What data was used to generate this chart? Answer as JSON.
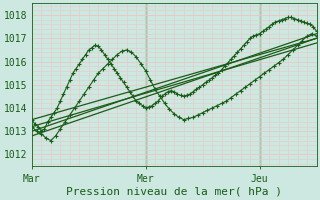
{
  "xlabel": "Pression niveau de la mer( hPa )",
  "bg_color": "#cce8e0",
  "plot_bg_color": "#cce8e0",
  "grid_major_color": "#e8c8c8",
  "grid_minor_color": "#e8c8c8",
  "line_color": "#1a5c1a",
  "vline_color": "#2d6e2d",
  "ylim": [
    1011.5,
    1018.5
  ],
  "yticks": [
    1012,
    1013,
    1014,
    1015,
    1016,
    1017,
    1018
  ],
  "xlabel_fontsize": 8,
  "tick_fontsize": 7,
  "series": [
    {
      "x": [
        0.0,
        1.0,
        2.0,
        3.0,
        4.0,
        5.0,
        6.0,
        7.0,
        8.0,
        9.0,
        10.0,
        11.0,
        12.0,
        13.0,
        14.0,
        15.0,
        16.0,
        17.0,
        18.0,
        19.0,
        20.0,
        21.0,
        22.0,
        23.0,
        24.0,
        25.0,
        26.0,
        27.0,
        28.0,
        29.0,
        30.0,
        31.0,
        32.0,
        33.0,
        34.0,
        35.0,
        36.0,
        37.0,
        38.0,
        39.0,
        40.0,
        41.0,
        42.0,
        43.0,
        44.0,
        45.0,
        46.0,
        47.0,
        48.0,
        49.0,
        50.0,
        51.0,
        52.0,
        53.0,
        54.0,
        55.0,
        56.0,
        57.0,
        58.0,
        59.0,
        60.0,
        61.0,
        62.0,
        63.0,
        64.0,
        65.0,
        66.0,
        67.0,
        68.0,
        69.0,
        70.0,
        71.0,
        72.0,
        73.0,
        74.0,
        75.0,
        76.0,
        77.0,
        78.0,
        79.0,
        80.0,
        81.0,
        82.0,
        83.0,
        84.0,
        85.0,
        86.0,
        87.0,
        88.0,
        89.0,
        90.0
      ],
      "y": [
        1013.5,
        1013.3,
        1013.2,
        1013.0,
        1013.1,
        1013.4,
        1013.6,
        1013.8,
        1014.0,
        1014.3,
        1014.6,
        1014.9,
        1015.2,
        1015.5,
        1015.7,
        1015.9,
        1016.1,
        1016.3,
        1016.5,
        1016.6,
        1016.7,
        1016.65,
        1016.5,
        1016.3,
        1016.1,
        1015.9,
        1015.7,
        1015.5,
        1015.3,
        1015.1,
        1014.9,
        1014.7,
        1014.5,
        1014.3,
        1014.2,
        1014.1,
        1014.0,
        1014.05,
        1014.1,
        1014.2,
        1014.3,
        1014.5,
        1014.6,
        1014.7,
        1014.75,
        1014.7,
        1014.6,
        1014.55,
        1014.5,
        1014.55,
        1014.6,
        1014.7,
        1014.8,
        1014.9,
        1015.0,
        1015.1,
        1015.2,
        1015.3,
        1015.4,
        1015.5,
        1015.65,
        1015.8,
        1015.95,
        1016.1,
        1016.25,
        1016.4,
        1016.55,
        1016.7,
        1016.85,
        1017.0,
        1017.1,
        1017.15,
        1017.2,
        1017.3,
        1017.4,
        1017.5,
        1017.6,
        1017.7,
        1017.75,
        1017.8,
        1017.85,
        1017.9,
        1017.9,
        1017.85,
        1017.8,
        1017.75,
        1017.7,
        1017.65,
        1017.6,
        1017.5,
        1017.3
      ],
      "with_markers": true
    },
    {
      "x": [
        0.0,
        1.5,
        3.0,
        4.5,
        6.0,
        7.5,
        9.0,
        10.5,
        12.0,
        13.5,
        15.0,
        16.5,
        18.0,
        19.5,
        21.0,
        22.5,
        24.0,
        25.5,
        27.0,
        28.5,
        30.0,
        31.5,
        33.0,
        34.5,
        36.0,
        37.5,
        39.0,
        40.5,
        42.0,
        43.5,
        45.0,
        46.5,
        48.0,
        49.5,
        51.0,
        52.5,
        54.0,
        55.5,
        57.0,
        58.5,
        60.0,
        61.5,
        63.0,
        64.5,
        66.0,
        67.5,
        69.0,
        70.5,
        72.0,
        73.5,
        75.0,
        76.5,
        78.0,
        79.5,
        81.0,
        82.5,
        84.0,
        85.5,
        87.0,
        88.5,
        90.0
      ],
      "y": [
        1013.2,
        1013.0,
        1012.9,
        1012.7,
        1012.6,
        1012.8,
        1013.1,
        1013.4,
        1013.7,
        1014.0,
        1014.3,
        1014.6,
        1014.9,
        1015.2,
        1015.5,
        1015.7,
        1015.9,
        1016.1,
        1016.3,
        1016.45,
        1016.5,
        1016.4,
        1016.2,
        1015.9,
        1015.6,
        1015.2,
        1014.8,
        1014.5,
        1014.2,
        1013.95,
        1013.75,
        1013.6,
        1013.5,
        1013.55,
        1013.6,
        1013.7,
        1013.8,
        1013.9,
        1014.0,
        1014.1,
        1014.2,
        1014.3,
        1014.45,
        1014.6,
        1014.75,
        1014.9,
        1015.05,
        1015.2,
        1015.35,
        1015.5,
        1015.65,
        1015.8,
        1015.95,
        1016.1,
        1016.3,
        1016.5,
        1016.7,
        1016.9,
        1017.1,
        1017.2,
        1017.1
      ],
      "with_markers": true
    },
    {
      "x": [
        0,
        90
      ],
      "y": [
        1013.5,
        1017.0
      ],
      "with_markers": false
    },
    {
      "x": [
        0,
        90
      ],
      "y": [
        1013.2,
        1016.8
      ],
      "with_markers": false
    },
    {
      "x": [
        0,
        90
      ],
      "y": [
        1013.0,
        1017.2
      ],
      "with_markers": false
    },
    {
      "x": [
        0,
        90
      ],
      "y": [
        1012.8,
        1017.0
      ],
      "with_markers": false
    }
  ],
  "xtick_positions": [
    0,
    36,
    72
  ],
  "xtick_labels": [
    "Mar",
    "Mer",
    "Jeu"
  ],
  "vlines": [
    36,
    72
  ],
  "xlim": [
    0,
    90
  ]
}
